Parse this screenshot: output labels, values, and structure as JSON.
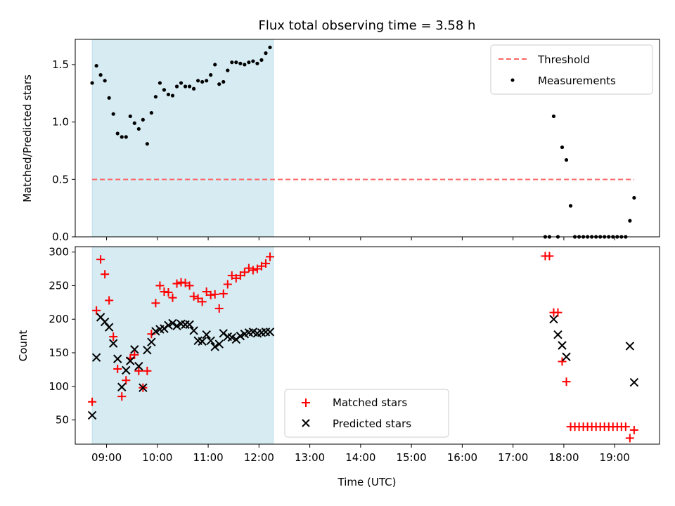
{
  "chart_data": [
    {
      "type": "scatter",
      "title": "Flux total observing time = 3.58 h",
      "ylabel": "Matched/Predicted stars",
      "xlabel": "",
      "ylim": [
        0,
        1.72
      ],
      "xlim": [
        "08:23",
        "19:53"
      ],
      "y_ticks": [
        0.0,
        0.5,
        1.0,
        1.5
      ],
      "y_tick_labels": [
        "0.0",
        "0.5",
        "1.0",
        "1.5"
      ],
      "shaded_span": {
        "start": "08:43",
        "end": "12:17",
        "color": "#add8e6"
      },
      "threshold": {
        "name": "Threshold",
        "value": 0.5,
        "color": "#ff6666",
        "x_start": "08:43",
        "x_end": "19:23"
      },
      "legend": {
        "placement": "top-right",
        "entries": [
          "Threshold",
          "Measurements"
        ]
      },
      "series": [
        {
          "name": "Measurements",
          "marker": "dot",
          "color": "#000000",
          "x": [
            "08:43",
            "08:48",
            "08:53",
            "08:58",
            "09:03",
            "09:08",
            "09:13",
            "09:18",
            "09:23",
            "09:28",
            "09:33",
            "09:38",
            "09:43",
            "09:48",
            "09:53",
            "09:58",
            "10:03",
            "10:08",
            "10:13",
            "10:18",
            "10:23",
            "10:28",
            "10:33",
            "10:38",
            "10:43",
            "10:48",
            "10:53",
            "10:58",
            "11:03",
            "11:08",
            "11:13",
            "11:18",
            "11:23",
            "11:28",
            "11:33",
            "11:38",
            "11:43",
            "11:48",
            "11:53",
            "11:58",
            "12:03",
            "12:08",
            "12:13",
            "17:38",
            "17:43",
            "17:48",
            "17:53",
            "17:58",
            "18:03",
            "18:08",
            "18:13",
            "18:18",
            "18:23",
            "18:28",
            "18:33",
            "18:38",
            "18:43",
            "18:48",
            "18:53",
            "18:58",
            "19:03",
            "19:08",
            "19:13",
            "19:18",
            "19:23"
          ],
          "y": [
            1.34,
            1.49,
            1.41,
            1.36,
            1.21,
            1.07,
            0.9,
            0.87,
            0.87,
            1.05,
            0.99,
            0.94,
            1.02,
            0.81,
            1.08,
            1.22,
            1.34,
            1.28,
            1.24,
            1.23,
            1.31,
            1.34,
            1.31,
            1.31,
            1.29,
            1.36,
            1.35,
            1.36,
            1.41,
            1.5,
            1.33,
            1.35,
            1.45,
            1.52,
            1.52,
            1.51,
            1.5,
            1.52,
            1.53,
            1.51,
            1.54,
            1.6,
            1.65,
            0.0,
            0.0,
            1.05,
            0.0,
            0.78,
            0.67,
            0.27,
            0.0,
            0.0,
            0.0,
            0.0,
            0.0,
            0.0,
            0.0,
            0.0,
            0.0,
            0.0,
            0.0,
            0.0,
            0.0,
            0.14,
            0.34
          ]
        }
      ]
    },
    {
      "type": "scatter",
      "title": "",
      "ylabel": "Count",
      "xlabel": "Time (UTC)",
      "ylim": [
        14,
        308
      ],
      "xlim": [
        "08:23",
        "19:53"
      ],
      "y_ticks": [
        50,
        100,
        150,
        200,
        250,
        300
      ],
      "y_tick_labels": [
        "50",
        "100",
        "150",
        "200",
        "250",
        "300"
      ],
      "x_ticks": [
        "09:00",
        "10:00",
        "11:00",
        "12:00",
        "13:00",
        "14:00",
        "15:00",
        "16:00",
        "17:00",
        "18:00",
        "19:00"
      ],
      "x_tick_labels": [
        "09:00",
        "10:00",
        "11:00",
        "12:00",
        "13:00",
        "14:00",
        "15:00",
        "16:00",
        "17:00",
        "18:00",
        "19:00"
      ],
      "shaded_span": {
        "start": "08:43",
        "end": "12:17",
        "color": "#add8e6"
      },
      "legend": {
        "placement": "lower-center",
        "entries": [
          "Matched stars",
          "Predicted stars"
        ]
      },
      "series": [
        {
          "name": "Matched stars",
          "marker": "plus",
          "color": "#ff0000",
          "x": [
            "08:43",
            "08:48",
            "08:53",
            "08:58",
            "09:03",
            "09:08",
            "09:13",
            "09:18",
            "09:23",
            "09:28",
            "09:33",
            "09:38",
            "09:43",
            "09:48",
            "09:53",
            "09:58",
            "10:03",
            "10:08",
            "10:13",
            "10:18",
            "10:23",
            "10:28",
            "10:33",
            "10:38",
            "10:43",
            "10:48",
            "10:53",
            "10:58",
            "11:03",
            "11:08",
            "11:13",
            "11:18",
            "11:23",
            "11:28",
            "11:33",
            "11:38",
            "11:43",
            "11:48",
            "11:53",
            "11:58",
            "12:03",
            "12:08",
            "12:13",
            "17:38",
            "17:43",
            "17:48",
            "17:53",
            "17:58",
            "18:03",
            "18:08",
            "18:13",
            "18:18",
            "18:23",
            "18:28",
            "18:33",
            "18:38",
            "18:43",
            "18:48",
            "18:53",
            "18:58",
            "19:03",
            "19:08",
            "19:13",
            "19:18",
            "19:23"
          ],
          "y": [
            77,
            213,
            289,
            267,
            228,
            174,
            126,
            85,
            109,
            142,
            147,
            123,
            98,
            123,
            178,
            224,
            250,
            241,
            240,
            232,
            253,
            255,
            254,
            250,
            234,
            231,
            226,
            241,
            236,
            237,
            216,
            238,
            252,
            265,
            261,
            265,
            270,
            276,
            273,
            275,
            279,
            283,
            293,
            294,
            294,
            210,
            210,
            137,
            107,
            40,
            40,
            40,
            40,
            40,
            40,
            40,
            40,
            40,
            40,
            40,
            40,
            40,
            40,
            23,
            35
          ]
        },
        {
          "name": "Predicted stars",
          "marker": "x",
          "color": "#000000",
          "x": [
            "08:43",
            "08:48",
            "08:53",
            "08:58",
            "09:03",
            "09:08",
            "09:13",
            "09:18",
            "09:23",
            "09:28",
            "09:33",
            "09:38",
            "09:43",
            "09:48",
            "09:53",
            "09:58",
            "10:03",
            "10:08",
            "10:13",
            "10:18",
            "10:23",
            "10:28",
            "10:33",
            "10:38",
            "10:43",
            "10:48",
            "10:53",
            "10:58",
            "11:03",
            "11:08",
            "11:13",
            "11:18",
            "11:23",
            "11:28",
            "11:33",
            "11:38",
            "11:43",
            "11:48",
            "11:53",
            "11:58",
            "12:03",
            "12:08",
            "12:13",
            "17:48",
            "17:53",
            "17:58",
            "18:03",
            "19:18",
            "19:23"
          ],
          "y": [
            57,
            143,
            203,
            196,
            188,
            164,
            141,
            99,
            124,
            138,
            155,
            130,
            98,
            154,
            166,
            182,
            185,
            186,
            191,
            194,
            190,
            193,
            192,
            192,
            183,
            168,
            167,
            177,
            168,
            159,
            163,
            179,
            174,
            173,
            170,
            175,
            178,
            180,
            181,
            179,
            180,
            181,
            181,
            200,
            177,
            161,
            144,
            160,
            106
          ]
        }
      ]
    }
  ]
}
